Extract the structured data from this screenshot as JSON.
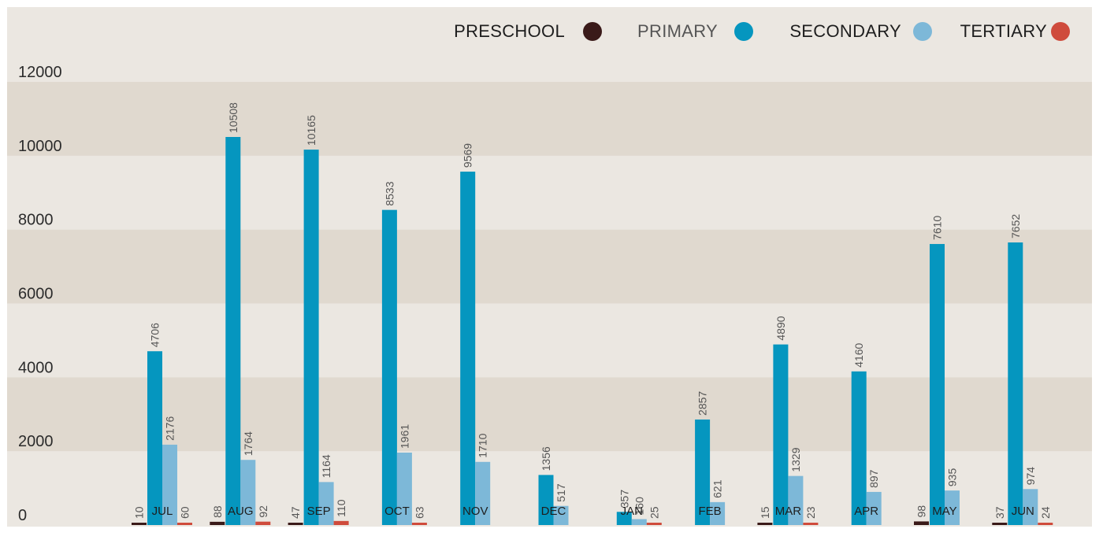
{
  "chart_data": {
    "type": "bar",
    "categories": [
      "JUL",
      "AUG",
      "SEP",
      "OCT",
      "NOV",
      "DEC",
      "JAN",
      "FEB",
      "MAR",
      "APR",
      "MAY",
      "JUN"
    ],
    "series": [
      {
        "name": "PRESCHOOL",
        "color": "#3a1a19",
        "values": [
          10,
          88,
          47,
          null,
          null,
          null,
          null,
          null,
          15,
          null,
          98,
          37
        ]
      },
      {
        "name": "PRIMARY",
        "color": "#0596bf",
        "values": [
          4706,
          10508,
          10165,
          8533,
          9569,
          1356,
          357,
          2857,
          4890,
          4160,
          7610,
          7652
        ]
      },
      {
        "name": "SECONDARY",
        "color": "#7db8d8",
        "values": [
          2176,
          1764,
          1164,
          1961,
          1710,
          517,
          160,
          621,
          1329,
          897,
          935,
          974
        ]
      },
      {
        "name": "TERTIARY",
        "color": "#cf4b3c",
        "values": [
          60,
          92,
          110,
          63,
          null,
          null,
          25,
          null,
          23,
          null,
          null,
          24
        ]
      }
    ],
    "yticks": [
      "0",
      "2000",
      "4000",
      "6000",
      "8000",
      "10000",
      "12000"
    ],
    "ylim": [
      0,
      12000
    ],
    "grid": "alternating horizontal bands",
    "legend_position": "top-right",
    "band_colors": [
      "#ebe7e1",
      "#e0d9cf"
    ]
  }
}
